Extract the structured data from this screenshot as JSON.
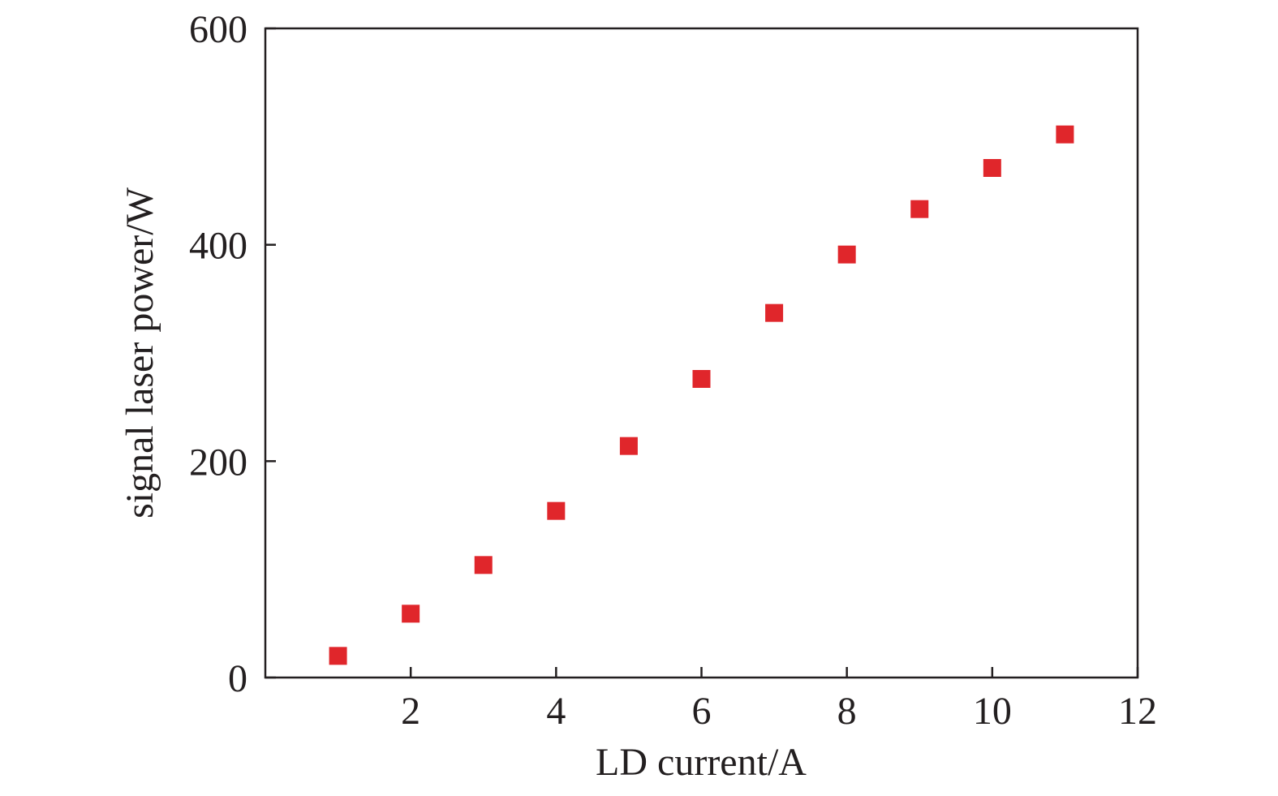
{
  "chart_data": {
    "type": "scatter",
    "title": "",
    "xlabel": "LD current/A",
    "ylabel": "signal laser power/W",
    "xlim": [
      0,
      12
    ],
    "ylim": [
      0,
      600
    ],
    "xticks": [
      2,
      4,
      6,
      8,
      10,
      12
    ],
    "yticks": [
      0,
      200,
      400,
      600
    ],
    "grid": false,
    "marker": "square",
    "marker_color": "#e0262b",
    "axis_color": "#231f20",
    "series": [
      {
        "x": [
          1,
          2,
          3,
          4,
          5,
          6,
          7,
          8,
          9,
          10,
          11
        ],
        "y": [
          20,
          59,
          104,
          154,
          214,
          276,
          337,
          391,
          433,
          471,
          502
        ]
      }
    ]
  }
}
